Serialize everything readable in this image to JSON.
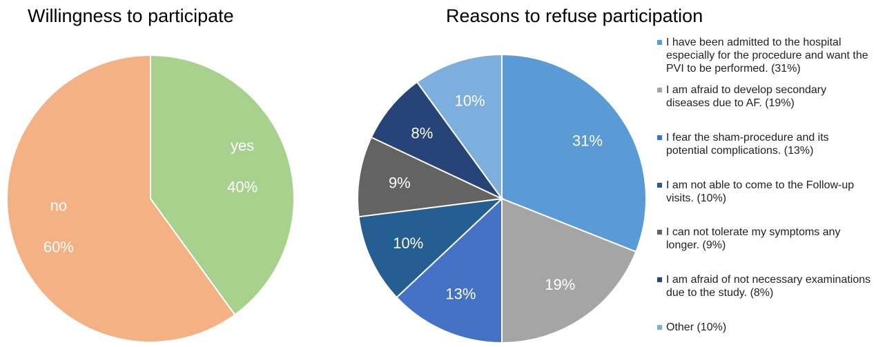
{
  "chart_data": [
    {
      "type": "pie",
      "title": "Willingness to participate",
      "slices": [
        {
          "label": "yes",
          "value": 40,
          "display": "40%",
          "color": "#a9d18e"
        },
        {
          "label": "no",
          "value": 60,
          "display": "60%",
          "color": "#f4b183"
        }
      ]
    },
    {
      "type": "pie",
      "title": "Reasons to refuse participation",
      "legend_position": "right",
      "slices": [
        {
          "label": "I have been admitted to the hospital especially for the procedure and want the PVI to be performed. (31%)",
          "value": 31,
          "display": "31%",
          "color": "#5b9bd5"
        },
        {
          "label": "I am afraid to develop secondary diseases due to AF. (19%)",
          "value": 19,
          "display": "19%",
          "color": "#a5a5a5"
        },
        {
          "label": "I fear the sham-procedure and its potential complications. (13%)",
          "value": 13,
          "display": "13%",
          "color": "#4472c4"
        },
        {
          "label": "I am not able to come to the Follow-up visits. (10%)",
          "value": 10,
          "display": "10%",
          "color": "#255e91"
        },
        {
          "label": "I can not tolerate my symptoms any longer. (9%)",
          "value": 9,
          "display": "9%",
          "color": "#636363"
        },
        {
          "label": "I am afraid of not necessary examinations due to the study. (8%)",
          "value": 8,
          "display": "8%",
          "color": "#264478"
        },
        {
          "label": "Other (10%)",
          "value": 10,
          "display": "10%",
          "color": "#7cafdd"
        }
      ]
    }
  ]
}
